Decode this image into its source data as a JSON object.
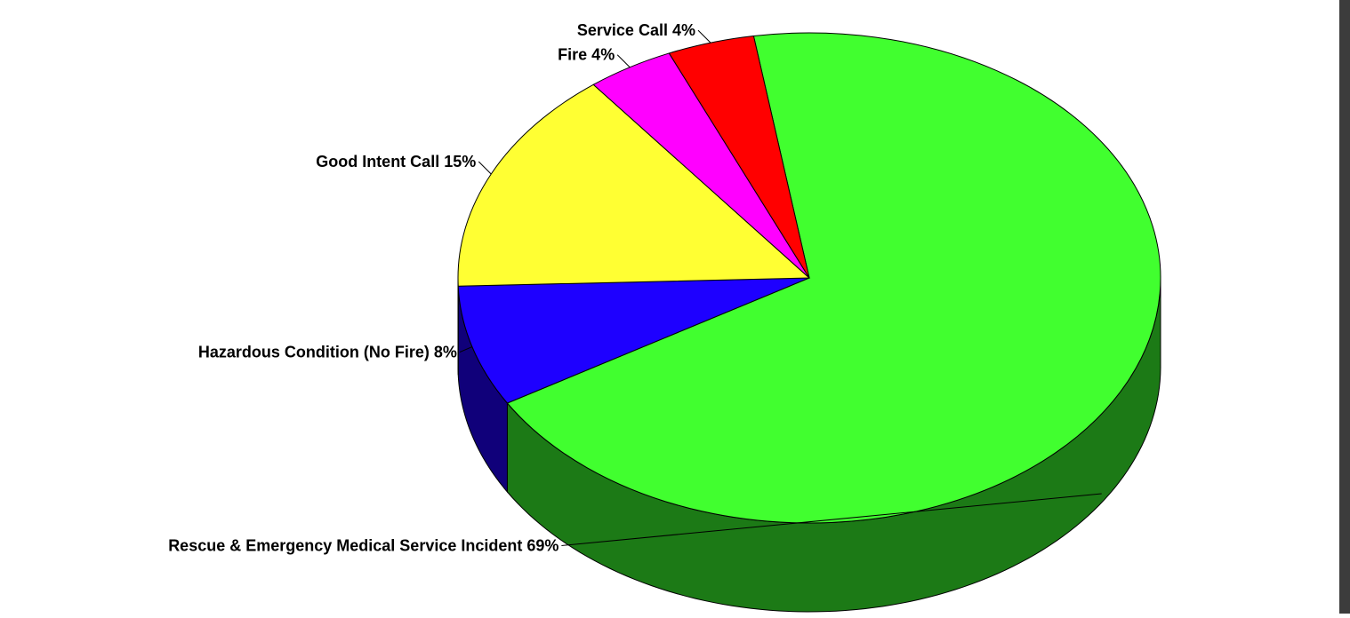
{
  "chart_data": {
    "type": "pie",
    "title": "",
    "slices": [
      {
        "label": "Rescue & Emergency Medical Service Incident",
        "value": 69,
        "display": "Rescue & Emergency Medical Service Incident 69%",
        "color": "#41ff2f",
        "side_color": "#1c7a16"
      },
      {
        "label": "Hazardous Condition (No Fire)",
        "value": 8,
        "display": "Hazardous Condition (No Fire) 8%",
        "color": "#1e00ff",
        "side_color": "#10007a"
      },
      {
        "label": "Good Intent Call",
        "value": 15,
        "display": "Good Intent Call 15%",
        "color": "#ffff33",
        "side_color": "#8a8a10"
      },
      {
        "label": "Fire",
        "value": 4,
        "display": "Fire 4%",
        "color": "#ff00ff",
        "side_color": "#7a007a"
      },
      {
        "label": "Service Call",
        "value": 4,
        "display": "Service Call 4%",
        "color": "#ff0000",
        "side_color": "#7a0000"
      }
    ],
    "legend": "none",
    "style": "3d-pie"
  }
}
